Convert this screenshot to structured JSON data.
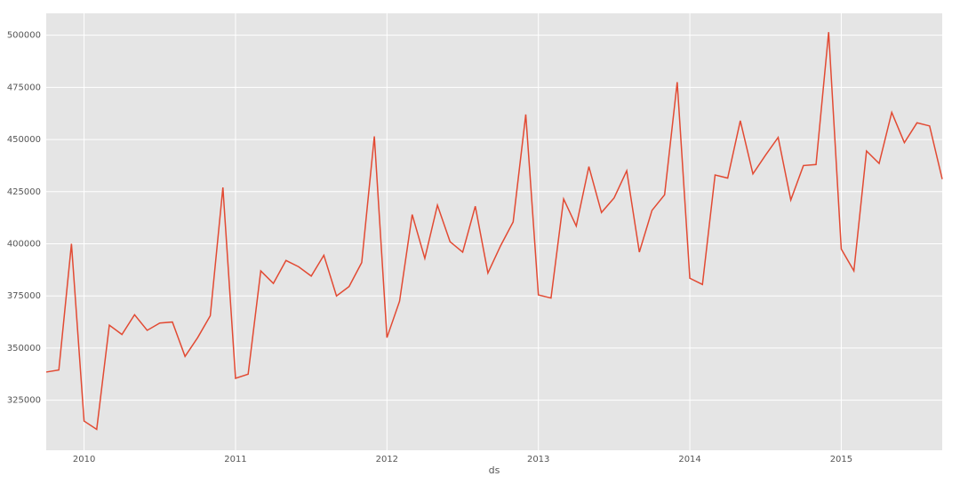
{
  "chart_data": {
    "type": "line",
    "xlabel": "ds",
    "grid": true,
    "x": [
      "2009-10",
      "2009-11",
      "2009-12",
      "2010-01",
      "2010-02",
      "2010-03",
      "2010-04",
      "2010-05",
      "2010-06",
      "2010-07",
      "2010-08",
      "2010-09",
      "2010-10",
      "2010-11",
      "2010-12",
      "2011-01",
      "2011-02",
      "2011-03",
      "2011-04",
      "2011-05",
      "2011-06",
      "2011-07",
      "2011-08",
      "2011-09",
      "2011-10",
      "2011-11",
      "2011-12",
      "2012-01",
      "2012-02",
      "2012-03",
      "2012-04",
      "2012-05",
      "2012-06",
      "2012-07",
      "2012-08",
      "2012-09",
      "2012-10",
      "2012-11",
      "2012-12",
      "2013-01",
      "2013-02",
      "2013-03",
      "2013-04",
      "2013-05",
      "2013-06",
      "2013-07",
      "2013-08",
      "2013-09",
      "2013-10",
      "2013-11",
      "2013-12",
      "2014-01",
      "2014-02",
      "2014-03",
      "2014-04",
      "2014-05",
      "2014-06",
      "2014-07",
      "2014-08",
      "2014-09",
      "2014-10",
      "2014-11",
      "2014-12",
      "2015-01",
      "2015-02",
      "2015-03",
      "2015-04",
      "2015-05",
      "2015-06",
      "2015-07",
      "2015-08",
      "2015-09"
    ],
    "series": [
      {
        "color": "#e24a33",
        "values": [
          338500,
          339500,
          400000,
          315000,
          311000,
          361000,
          356500,
          366000,
          358500,
          362000,
          362500,
          346000,
          355000,
          365500,
          427000,
          335500,
          337500,
          387000,
          381000,
          392000,
          389000,
          384500,
          394500,
          375000,
          379500,
          391000,
          451500,
          355000,
          372500,
          414000,
          393000,
          418500,
          401000,
          396000,
          418000,
          386000,
          399000,
          410500,
          462000,
          375500,
          374000,
          421500,
          408500,
          437000,
          415000,
          422000,
          435000,
          396000,
          416000,
          423500,
          477500,
          383500,
          380500,
          433000,
          431500,
          459000,
          433500,
          442500,
          451000,
          421000,
          437500,
          438000,
          501500,
          397500,
          387000,
          444500,
          438500,
          463000,
          448500,
          458000,
          456500,
          431000
        ]
      }
    ],
    "xlim": [
      "2009-10",
      "2015-09"
    ],
    "xticks": [
      "2010",
      "2011",
      "2012",
      "2013",
      "2014",
      "2015"
    ],
    "ylim": [
      301000,
      510500
    ],
    "yticks": [
      325000,
      350000,
      375000,
      400000,
      425000,
      450000,
      475000,
      500000
    ]
  }
}
